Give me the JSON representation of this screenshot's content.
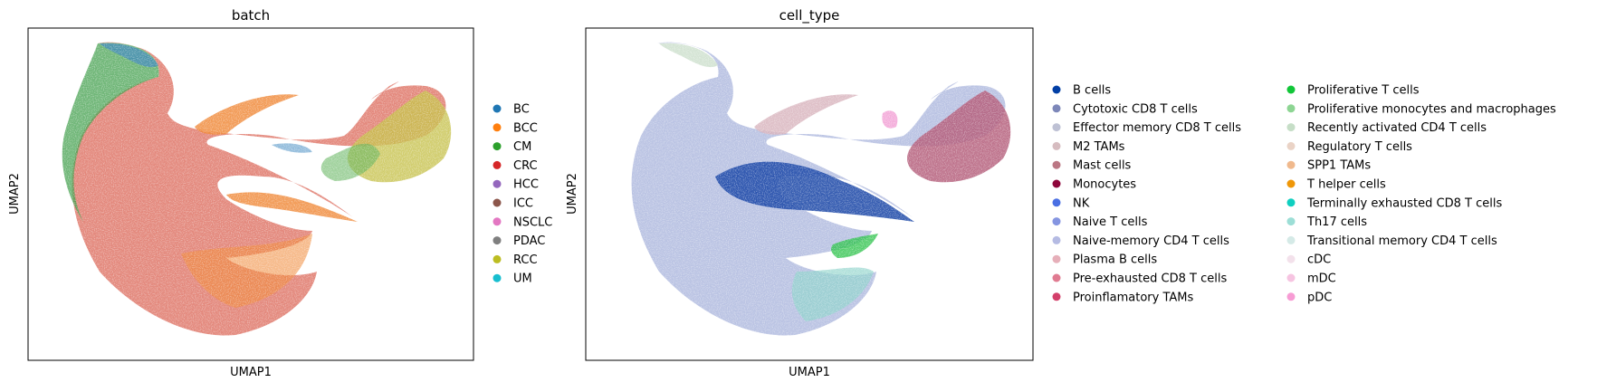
{
  "chart_data": [
    {
      "type": "scatter",
      "title": "batch",
      "xlabel": "UMAP1",
      "ylabel": "UMAP2",
      "ticks": "none",
      "legend_placement": "right",
      "legend": [
        {
          "label": "BC",
          "color": "#1f77b4"
        },
        {
          "label": "BCC",
          "color": "#ff7f0e"
        },
        {
          "label": "CM",
          "color": "#2ca02c"
        },
        {
          "label": "CRC",
          "color": "#d62728"
        },
        {
          "label": "HCC",
          "color": "#9467bd"
        },
        {
          "label": "ICC",
          "color": "#8c564b"
        },
        {
          "label": "NSCLC",
          "color": "#e377c2"
        },
        {
          "label": "PDAC",
          "color": "#7f7f7f"
        },
        {
          "label": "RCC",
          "color": "#bcbd22"
        },
        {
          "label": "UM",
          "color": "#17becf"
        }
      ]
    },
    {
      "type": "scatter",
      "title": "cell_type",
      "xlabel": "UMAP1",
      "ylabel": "UMAP2",
      "ticks": "none",
      "legend_placement": "right",
      "legend_columns": 2,
      "legend": [
        {
          "label": "B cells",
          "color": "#023fa5"
        },
        {
          "label": "Cytotoxic CD8 T cells",
          "color": "#7d87b9"
        },
        {
          "label": "Effector memory CD8 T cells",
          "color": "#bec1d4"
        },
        {
          "label": "M2 TAMs",
          "color": "#d6bcc0"
        },
        {
          "label": "Mast cells",
          "color": "#bb7784"
        },
        {
          "label": "Monocytes",
          "color": "#8e063b"
        },
        {
          "label": "NK",
          "color": "#4a6fe3"
        },
        {
          "label": "Naive T cells",
          "color": "#8595e1"
        },
        {
          "label": "Naive-memory CD4 T cells",
          "color": "#b5bbe3"
        },
        {
          "label": "Plasma B cells",
          "color": "#e6afb9"
        },
        {
          "label": "Pre-exhausted CD8 T cells",
          "color": "#e07b91"
        },
        {
          "label": "Proinflamatory TAMs",
          "color": "#d33f6a"
        },
        {
          "label": "Proliferative T cells",
          "color": "#11c638"
        },
        {
          "label": "Proliferative monocytes and macrophages",
          "color": "#8dd593"
        },
        {
          "label": "Recently activated CD4 T cells",
          "color": "#c6dec7"
        },
        {
          "label": "Regulatory T cells",
          "color": "#ead3c6"
        },
        {
          "label": "SPP1 TAMs",
          "color": "#f0b98d"
        },
        {
          "label": "T helper cells",
          "color": "#ef9708"
        },
        {
          "label": "Terminally exhausted CD8 T cells",
          "color": "#0fcfc0"
        },
        {
          "label": "Th17 cells",
          "color": "#9cded6"
        },
        {
          "label": "Transitional memory CD4 T cells",
          "color": "#d5eae7"
        },
        {
          "label": "cDC",
          "color": "#f3e1eb"
        },
        {
          "label": "mDC",
          "color": "#f6c4e1"
        },
        {
          "label": "pDC",
          "color": "#f79cd4"
        }
      ]
    }
  ]
}
